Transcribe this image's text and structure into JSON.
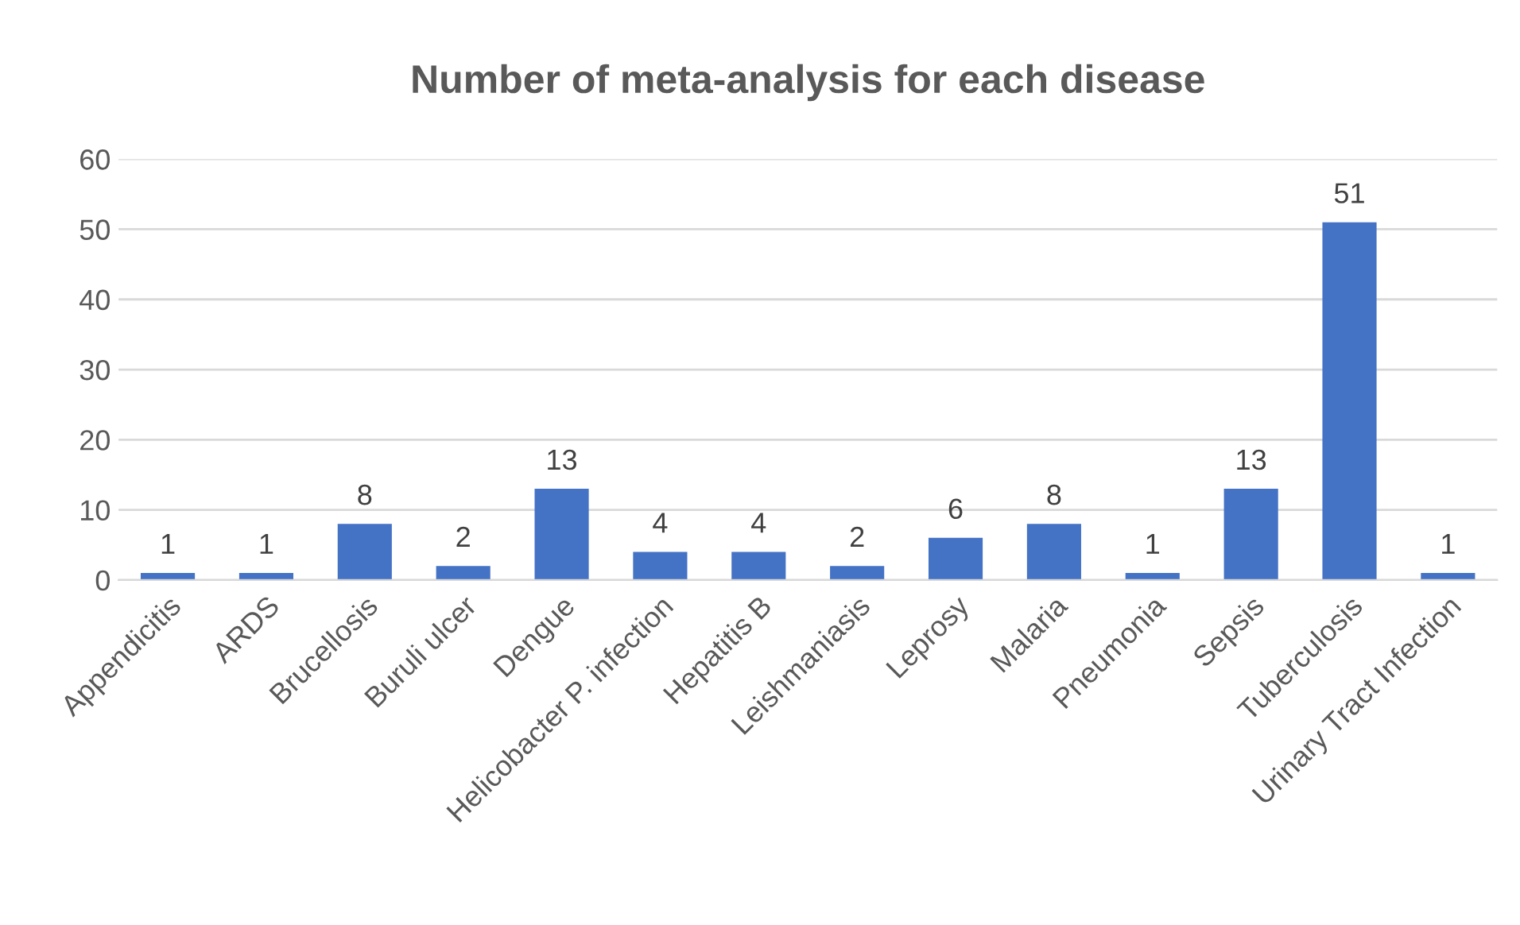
{
  "chart_data": {
    "type": "bar",
    "title": "Number of meta-analysis for each disease",
    "categories": [
      "Appendicitis",
      "ARDS",
      "Brucellosis",
      "Buruli ulcer",
      "Dengue",
      "Helicobacter P. infection",
      "Hepatitis B",
      "Leishmaniasis",
      "Leprosy",
      "Malaria",
      "Pneumonia",
      "Sepsis",
      "Tuberculosis",
      "Urinary Tract Infection"
    ],
    "values": [
      1,
      1,
      8,
      2,
      13,
      4,
      4,
      2,
      6,
      8,
      1,
      13,
      51,
      1
    ],
    "color": "#4472c4",
    "ylim": [
      0,
      60
    ],
    "yticks": [
      0,
      10,
      20,
      30,
      40,
      50,
      60
    ],
    "grid": "y",
    "data_labels": true
  }
}
